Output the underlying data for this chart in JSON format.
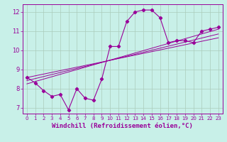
{
  "title": "",
  "xlabel": "Windchill (Refroidissement éolien,°C)",
  "ylabel": "",
  "bg_color": "#c8f0e8",
  "line_color": "#990099",
  "grid_color": "#aaccbb",
  "xlim": [
    -0.5,
    23.5
  ],
  "ylim": [
    6.7,
    12.4
  ],
  "xticks": [
    0,
    1,
    2,
    3,
    4,
    5,
    6,
    7,
    8,
    9,
    10,
    11,
    12,
    13,
    14,
    15,
    16,
    17,
    18,
    19,
    20,
    21,
    22,
    23
  ],
  "yticks": [
    7,
    8,
    9,
    10,
    11,
    12
  ],
  "scatter_x": [
    0,
    1,
    2,
    3,
    4,
    5,
    6,
    7,
    8,
    9,
    10,
    11,
    12,
    13,
    14,
    15,
    16,
    17,
    18,
    19,
    20,
    21,
    22,
    23
  ],
  "scatter_y": [
    8.6,
    8.3,
    7.9,
    7.6,
    7.7,
    6.9,
    8.0,
    7.5,
    7.4,
    8.5,
    10.2,
    10.2,
    11.5,
    12.0,
    12.1,
    12.1,
    11.7,
    10.4,
    10.5,
    10.5,
    10.4,
    11.0,
    11.1,
    11.2
  ],
  "reg_line": [
    [
      0,
      23
    ],
    [
      8.25,
      11.1
    ]
  ],
  "reg_line2": [
    [
      0,
      23
    ],
    [
      8.42,
      10.85
    ]
  ],
  "reg_line3": [
    [
      0,
      23
    ],
    [
      8.58,
      10.65
    ]
  ]
}
